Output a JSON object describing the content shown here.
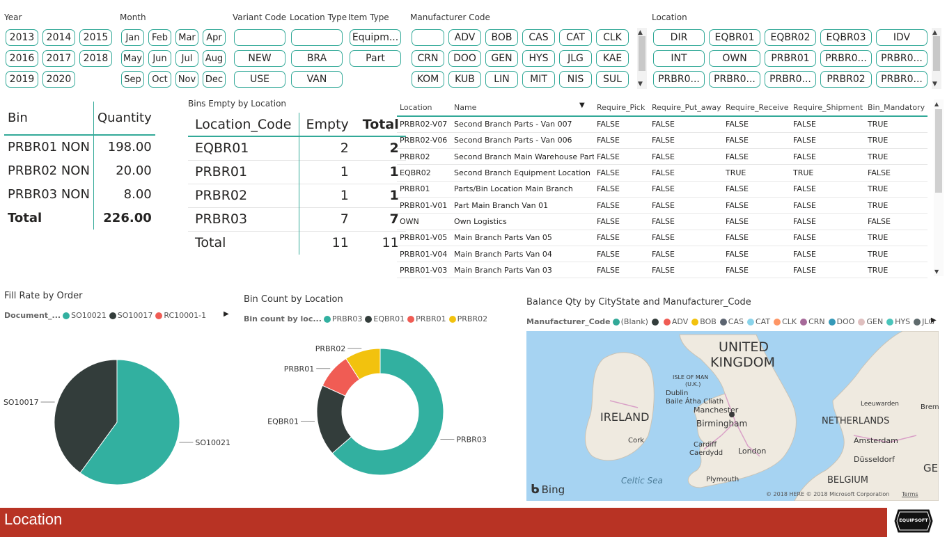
{
  "slicers": {
    "year": {
      "label": "Year",
      "items": [
        "2013",
        "2014",
        "2015",
        "2016",
        "2017",
        "2018",
        "2019",
        "2020"
      ]
    },
    "month": {
      "label": "Month",
      "items": [
        "Jan",
        "Feb",
        "Mar",
        "Apr",
        "May",
        "Jun",
        "Jul",
        "Aug",
        "Sep",
        "Oct",
        "Nov",
        "Dec"
      ]
    },
    "variant_code": {
      "label": "Variant Code",
      "items": [
        "",
        "NEW",
        "USE"
      ]
    },
    "location_type": {
      "label": "Location Type",
      "items": [
        "",
        "BRA",
        "VAN"
      ]
    },
    "item_type": {
      "label": "Item Type",
      "items": [
        "Equipm...",
        "Part"
      ]
    },
    "manufacturer_code": {
      "label": "Manufacturer Code",
      "items": [
        "",
        "ADV",
        "BOB",
        "CAS",
        "CAT",
        "CLK",
        "CRN",
        "DOO",
        "GEN",
        "HYS",
        "JLG",
        "KAE",
        "KOM",
        "KUB",
        "LIN",
        "MIT",
        "NIS",
        "SUL"
      ]
    },
    "location": {
      "label": "Location",
      "items": [
        "DIR",
        "EQBR01",
        "EQBR02",
        "EQBR03",
        "IDV",
        "INT",
        "OWN",
        "PRBR01",
        "PRBR0...",
        "PRBR0...",
        "PRBR0...",
        "PRBR0...",
        "PRBR0...",
        "PRBR02",
        "PRBR0..."
      ]
    }
  },
  "bin_table": {
    "headers": [
      "Bin",
      "Quantity"
    ],
    "rows": [
      [
        "PRBR01 NON",
        "198.00"
      ],
      [
        "PRBR02 NON",
        "20.00"
      ],
      [
        "PRBR03 NON",
        "8.00"
      ]
    ],
    "total_label": "Total",
    "total_value": "226.00"
  },
  "empty_table": {
    "title": "Bins Empty by Location",
    "headers": [
      "Location_Code",
      "Empty",
      "Total"
    ],
    "rows": [
      [
        "EQBR01",
        "2",
        "2"
      ],
      [
        "PRBR01",
        "1",
        "1"
      ],
      [
        "PRBR02",
        "1",
        "1"
      ],
      [
        "PRBR03",
        "7",
        "7"
      ]
    ],
    "total_label": "Total",
    "total_empty": "11",
    "total_total": "11"
  },
  "location_table": {
    "headers": [
      "Location",
      "Name",
      "Require_Pick",
      "Require_Put_away",
      "Require_Receive",
      "Require_Shipment",
      "Bin_Mandatory"
    ],
    "rows": [
      [
        "PRBR02-V07",
        "Second Branch Parts - Van 007",
        "FALSE",
        "FALSE",
        "FALSE",
        "FALSE",
        "TRUE"
      ],
      [
        "PRBR02-V06",
        "Second Branch Parts - Van 006",
        "FALSE",
        "FALSE",
        "FALSE",
        "FALSE",
        "TRUE"
      ],
      [
        "PRBR02",
        "Second Branch Main Warehouse Parts",
        "FALSE",
        "FALSE",
        "FALSE",
        "FALSE",
        "TRUE"
      ],
      [
        "EQBR02",
        "Second Branch Equipment Location",
        "FALSE",
        "FALSE",
        "TRUE",
        "TRUE",
        "FALSE"
      ],
      [
        "PRBR01",
        "Parts/Bin Location Main Branch",
        "FALSE",
        "FALSE",
        "FALSE",
        "FALSE",
        "TRUE"
      ],
      [
        "PRBR01-V01",
        "Part Main Branch Van 01",
        "FALSE",
        "FALSE",
        "FALSE",
        "FALSE",
        "TRUE"
      ],
      [
        "OWN",
        "Own Logistics",
        "FALSE",
        "FALSE",
        "FALSE",
        "FALSE",
        "FALSE"
      ],
      [
        "PRBR01-V05",
        "Main Branch Parts Van 05",
        "FALSE",
        "FALSE",
        "FALSE",
        "FALSE",
        "TRUE"
      ],
      [
        "PRBR01-V04",
        "Main Branch Parts Van 04",
        "FALSE",
        "FALSE",
        "FALSE",
        "FALSE",
        "TRUE"
      ],
      [
        "PRBR01-V03",
        "Main Branch Parts Van 03",
        "FALSE",
        "FALSE",
        "FALSE",
        "FALSE",
        "TRUE"
      ]
    ]
  },
  "fill_rate": {
    "title": "Fill Rate by Order",
    "legend_title": "Document_...",
    "labels": [
      "SO10021",
      "SO10017"
    ]
  },
  "bin_count": {
    "title": "Bin Count by Location",
    "legend_title": "Bin count by loc...",
    "labels": [
      "PRBR03",
      "EQBR01",
      "PRBR01",
      "PRBR02"
    ]
  },
  "balance_map": {
    "title": "Balance Qty by CityState and Manufacturer_Code",
    "legend_title": "Manufacturer_Code",
    "legend": [
      {
        "name": "(Blank)",
        "color": "#32a998"
      },
      {
        "name": "",
        "color": "#333d3b"
      },
      {
        "name": "ADV",
        "color": "#f05c54"
      },
      {
        "name": "BOB",
        "color": "#f2c20e"
      },
      {
        "name": "CAS",
        "color": "#5c6470"
      },
      {
        "name": "CAT",
        "color": "#8ad4eb"
      },
      {
        "name": "CLK",
        "color": "#fe9666"
      },
      {
        "name": "CRN",
        "color": "#a66999"
      },
      {
        "name": "DOO",
        "color": "#3599b8"
      },
      {
        "name": "GEN",
        "color": "#dfbfbf"
      },
      {
        "name": "HYS",
        "color": "#4ac5bb"
      },
      {
        "name": "JLG",
        "color": "#5f6b6d"
      }
    ],
    "places": {
      "uk": "UNITED",
      "uk2": "KINGDOM",
      "ireland": "IRELAND",
      "netherlands": "NETHERLANDS",
      "belgium": "BELGIUM",
      "germ": "GERM",
      "isle": "ISLE OF MAN",
      "isle2": "(U.K.)",
      "dublin": "Dublin",
      "baile": "Baile Átha Cliath",
      "manchester": "Manchester",
      "birmingham": "Birmingham",
      "cork": "Cork",
      "cardiff": "Cardiff",
      "cardiff2": "Caerdydd",
      "london": "London",
      "plymouth": "Plymouth",
      "celtic": "Celtic Sea",
      "leeuwarden": "Leeuwarden",
      "bremen": "Breme",
      "amsterdam": "Amsterdam",
      "dusseldorf": "Düsseldorf"
    },
    "bing": "Bing",
    "copyright": "© 2018 HERE © 2018 Microsoft Corporation",
    "terms": "Terms"
  },
  "footer": {
    "title": "Location"
  },
  "logo": {
    "text": "EQUIPSOFT"
  },
  "chart_data": [
    {
      "type": "pie",
      "title": "Fill Rate by Order",
      "categories": [
        "SO10021",
        "SO10017",
        "RC10001-1"
      ],
      "values": [
        60,
        40,
        0
      ],
      "colors": [
        "#32b0a0",
        "#333d3b",
        "#f05c54"
      ]
    },
    {
      "type": "pie",
      "title": "Bin Count by Location",
      "donut": true,
      "categories": [
        "PRBR03",
        "EQBR01",
        "PRBR01",
        "PRBR02"
      ],
      "values": [
        7,
        2,
        1,
        1
      ],
      "colors": [
        "#32b0a0",
        "#333d3b",
        "#f05c54",
        "#f2c20e"
      ]
    }
  ]
}
